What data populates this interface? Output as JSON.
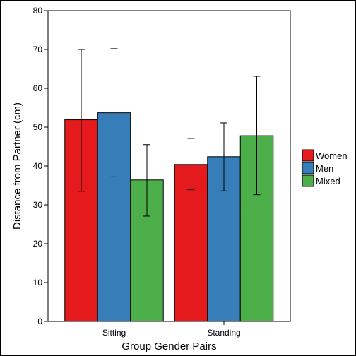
{
  "chart_data": {
    "type": "bar",
    "xlabel": "Group Gender Pairs",
    "ylabel": "Distance from Partner (cm)",
    "ylim": [
      0,
      80
    ],
    "yticks": [
      0,
      10,
      20,
      30,
      40,
      50,
      60,
      70,
      80
    ],
    "categories": [
      "Sitting",
      "Standing"
    ],
    "series": [
      {
        "name": "Women",
        "color": "#e41a1c",
        "values": [
          51.9,
          40.4
        ],
        "error_low": [
          33.5,
          33.9
        ],
        "error_high": [
          70.0,
          47.1
        ]
      },
      {
        "name": "Men",
        "color": "#377eb8",
        "values": [
          53.7,
          42.4
        ],
        "error_low": [
          37.2,
          33.6
        ],
        "error_high": [
          70.2,
          51.1
        ]
      },
      {
        "name": "Mixed",
        "color": "#4daf4a",
        "values": [
          36.4,
          47.8
        ],
        "error_low": [
          27.1,
          32.6
        ],
        "error_high": [
          45.5,
          63.1
        ]
      }
    ],
    "legend_position": "right",
    "grid": false,
    "error_bars": true
  }
}
